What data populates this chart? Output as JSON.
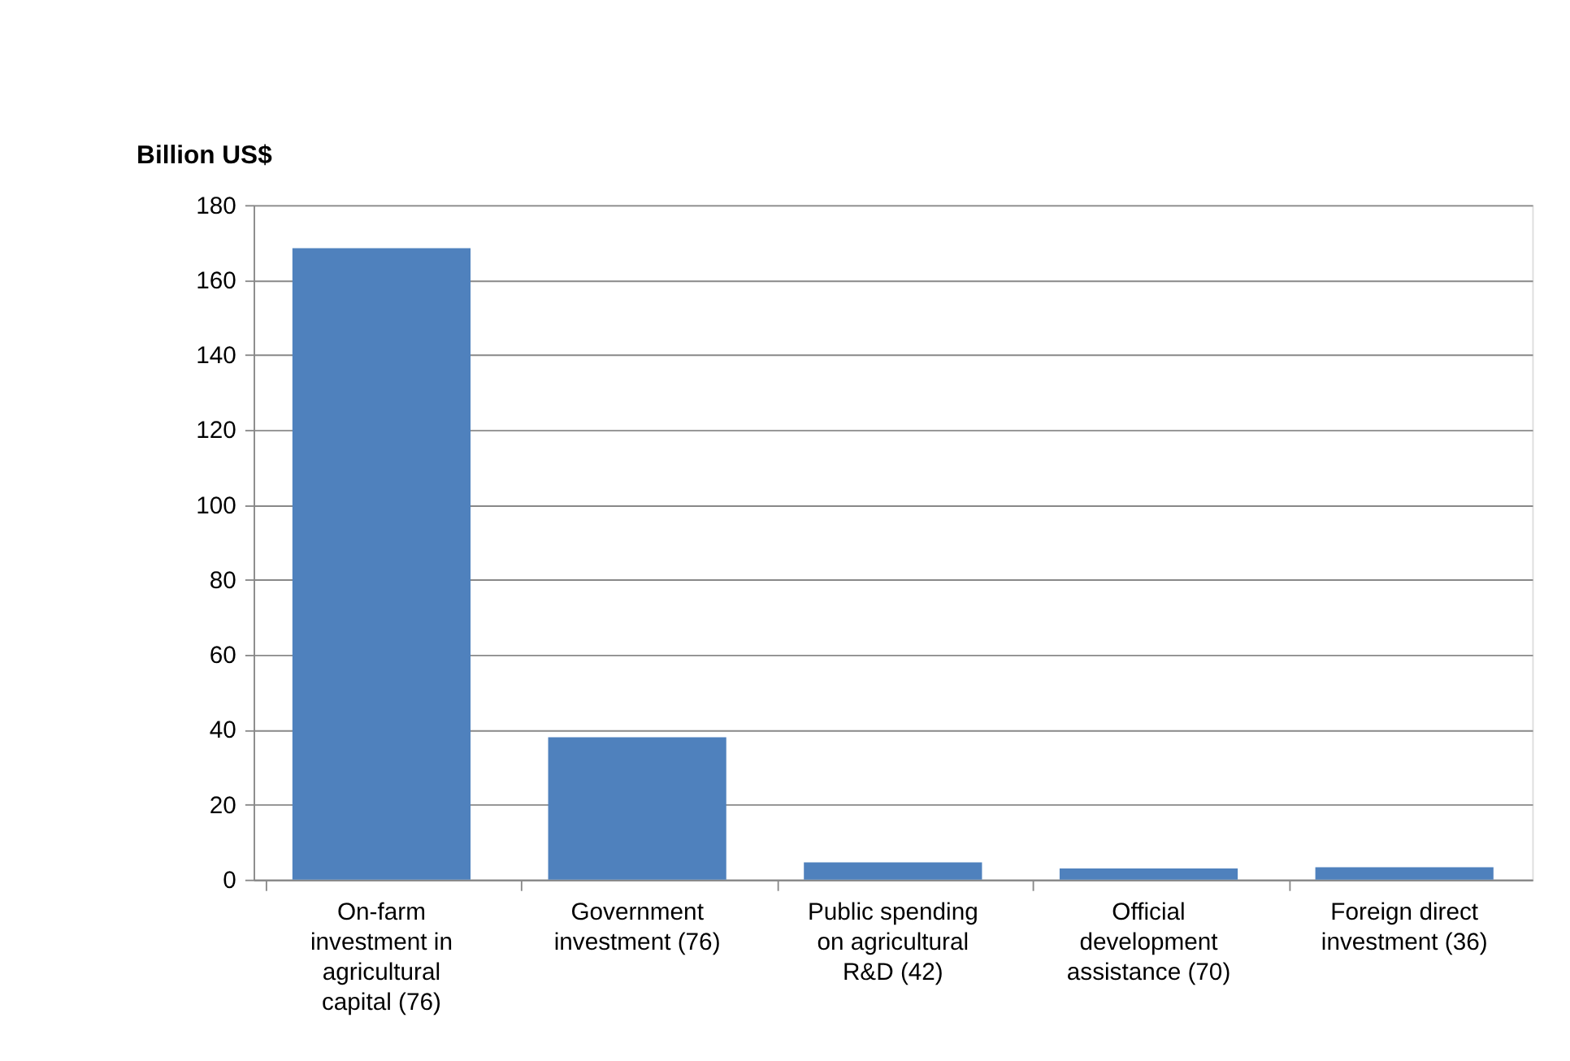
{
  "chart_data": {
    "type": "bar",
    "ylabel": "Billion US$",
    "categories": [
      "On-farm investment in agricultural capital (76)",
      "Government investment (76)",
      "Public spending on agricultural R&D (42)",
      "Official development assistance (70)",
      "Foreign direct investment (36)"
    ],
    "values": [
      168.5,
      38,
      4.6,
      3,
      3.3
    ],
    "color": "#4f81bd",
    "ylim": [
      0,
      180
    ],
    "yticks": [
      0,
      20,
      40,
      60,
      80,
      100,
      120,
      140,
      160,
      180
    ],
    "grid": "y"
  }
}
